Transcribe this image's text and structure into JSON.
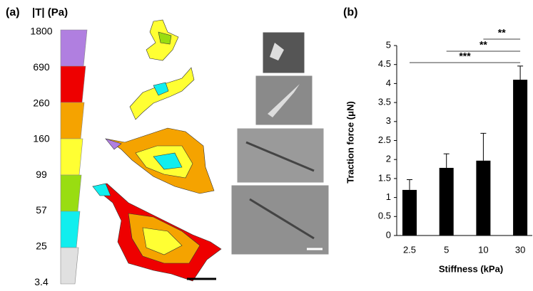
{
  "panel_a": {
    "label": "(a)",
    "scale_title": "|T| (Pa)",
    "scale_ticks": [
      1800,
      690,
      260,
      160,
      99,
      57,
      25,
      3.4
    ],
    "scale_colors": [
      "#b07fe0",
      "#ee0000",
      "#f5a300",
      "#ffff33",
      "#99dd11",
      "#11eeee",
      "#e0e0e0"
    ]
  },
  "chart_data": {
    "type": "bar",
    "label": "(b)",
    "categories": [
      "2.5",
      "5",
      "10",
      "30"
    ],
    "values": [
      1.2,
      1.78,
      1.97,
      4.1
    ],
    "errors": [
      0.27,
      0.37,
      0.72,
      0.36
    ],
    "color": "#000000",
    "xlabel": "Stiffness (kPa)",
    "ylabel": "Traction force (μN)",
    "ylim": [
      0,
      5
    ],
    "yticks": [
      0,
      0.5,
      1,
      1.5,
      2,
      2.5,
      3,
      3.5,
      4,
      4.5,
      5
    ],
    "grid": false,
    "annotations": [
      "***",
      "**",
      "**"
    ]
  }
}
